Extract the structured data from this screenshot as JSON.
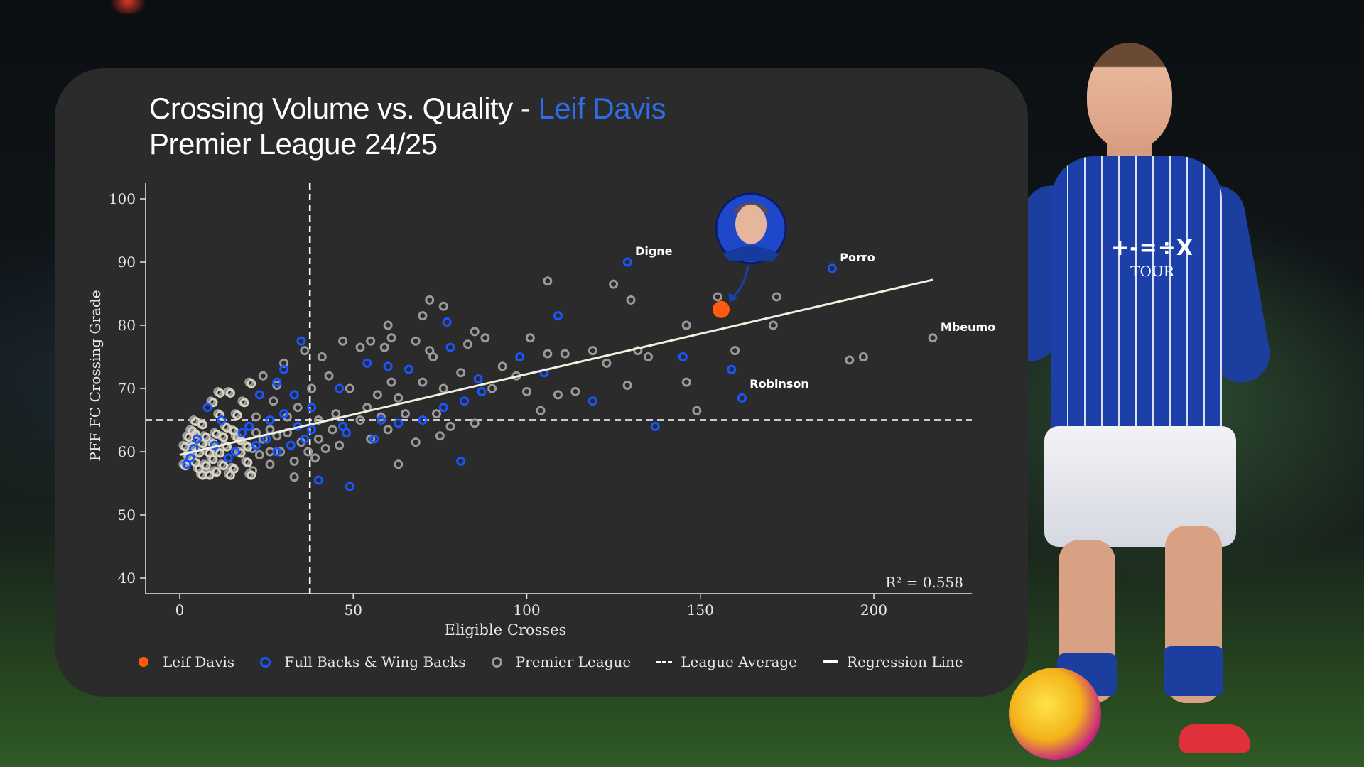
{
  "title": {
    "line1_prefix": "Crossing Volume vs. Quality - ",
    "line1_accent": "Leif Davis",
    "line2": "Premier League 24/25"
  },
  "player_shirt": {
    "sponsor": "+-=÷X",
    "sub": "TOUR"
  },
  "colors": {
    "card_bg": "#2b2b2b",
    "highlight": "#ff5a10",
    "fullbacks": "#1a56ff",
    "league": "#9a9a9a",
    "accent_title": "#2f6de6"
  },
  "chart_data": {
    "type": "scatter",
    "xlabel": "Eligible Crosses",
    "ylabel": "PFF FC Crossing Grade",
    "xlim": [
      -10,
      228
    ],
    "ylim": [
      38,
      102
    ],
    "xticks": [
      0,
      50,
      100,
      150,
      200
    ],
    "yticks": [
      40,
      50,
      60,
      70,
      80,
      90,
      100
    ],
    "league_average": {
      "x": 37.5,
      "y": 65
    },
    "regression": {
      "x0": 0,
      "y0": 59.5,
      "x1": 217,
      "y1": 87.2
    },
    "r_squared_label": "R² = 0.558",
    "series": [
      {
        "name": "Leif Davis",
        "style": "highlight",
        "points": [
          [
            156,
            82.5
          ]
        ]
      },
      {
        "name": "Full Backs & Wing Backs",
        "style": "ring-blue",
        "points": [
          [
            129,
            90
          ],
          [
            188,
            89
          ],
          [
            159,
            73
          ],
          [
            162,
            68.5
          ],
          [
            145,
            75
          ],
          [
            137,
            64
          ],
          [
            109,
            81.5
          ],
          [
            77,
            80.5
          ],
          [
            78,
            76.5
          ],
          [
            66,
            73
          ],
          [
            60,
            73.5
          ],
          [
            54,
            74
          ],
          [
            35,
            77.5
          ],
          [
            30,
            73
          ],
          [
            28,
            71
          ],
          [
            23,
            69
          ],
          [
            33,
            69
          ],
          [
            38,
            67
          ],
          [
            46,
            70
          ],
          [
            58,
            65
          ],
          [
            63,
            64.5
          ],
          [
            70,
            65
          ],
          [
            76,
            67
          ],
          [
            82,
            68
          ],
          [
            86,
            71.5
          ],
          [
            87,
            69.5
          ],
          [
            98,
            75
          ],
          [
            105,
            72.5
          ],
          [
            119,
            68
          ],
          [
            56,
            62
          ],
          [
            47,
            64
          ],
          [
            48,
            63
          ],
          [
            40,
            55.5
          ],
          [
            49,
            54.5
          ],
          [
            81,
            58.5
          ],
          [
            8,
            67
          ],
          [
            12,
            65
          ],
          [
            16,
            60
          ],
          [
            20,
            64
          ],
          [
            25,
            62
          ],
          [
            5,
            62
          ],
          [
            3,
            59
          ],
          [
            2,
            58
          ],
          [
            14,
            59
          ],
          [
            28,
            60
          ],
          [
            32,
            61
          ],
          [
            36,
            62
          ],
          [
            38,
            63.5
          ],
          [
            18,
            63
          ],
          [
            22,
            61
          ],
          [
            26,
            65
          ],
          [
            10,
            61
          ],
          [
            4,
            60.5
          ],
          [
            30,
            66
          ],
          [
            34,
            64
          ]
        ]
      },
      {
        "name": "Premier League",
        "style": "ring-grey",
        "points": [
          [
            106,
            87
          ],
          [
            125,
            86.5
          ],
          [
            130,
            84
          ],
          [
            155,
            84.5
          ],
          [
            172,
            84.5
          ],
          [
            171,
            80
          ],
          [
            146,
            80
          ],
          [
            160,
            76
          ],
          [
            132,
            76
          ],
          [
            135,
            75
          ],
          [
            146,
            71
          ],
          [
            129,
            70.5
          ],
          [
            149,
            66.5
          ],
          [
            193,
            74.5
          ],
          [
            197,
            75
          ],
          [
            217,
            78
          ],
          [
            72,
            84
          ],
          [
            76,
            83
          ],
          [
            70,
            81.5
          ],
          [
            60,
            80
          ],
          [
            55,
            77.5
          ],
          [
            47,
            77.5
          ],
          [
            52,
            76.5
          ],
          [
            59,
            76.5
          ],
          [
            61,
            78
          ],
          [
            68,
            77.5
          ],
          [
            72,
            76
          ],
          [
            73,
            75
          ],
          [
            83,
            77
          ],
          [
            85,
            79
          ],
          [
            88,
            78
          ],
          [
            93,
            73.5
          ],
          [
            101,
            78
          ],
          [
            106,
            75.5
          ],
          [
            111,
            75.5
          ],
          [
            119,
            76
          ],
          [
            123,
            74
          ],
          [
            97,
            72
          ],
          [
            100,
            69.5
          ],
          [
            104,
            66.5
          ],
          [
            109,
            69
          ],
          [
            114,
            69.5
          ],
          [
            90,
            70
          ],
          [
            81,
            72.5
          ],
          [
            76,
            70
          ],
          [
            70,
            71
          ],
          [
            61,
            71
          ],
          [
            63,
            68.5
          ],
          [
            57,
            69
          ],
          [
            54,
            67
          ],
          [
            49,
            70
          ],
          [
            43,
            72
          ],
          [
            41,
            75
          ],
          [
            36,
            76
          ],
          [
            38,
            70
          ],
          [
            30,
            74
          ],
          [
            28,
            70.5
          ],
          [
            24,
            72
          ],
          [
            20,
            71
          ],
          [
            18,
            68
          ],
          [
            14,
            69.5
          ],
          [
            11,
            69.5
          ],
          [
            9,
            68
          ],
          [
            16,
            66
          ],
          [
            22,
            65.5
          ],
          [
            27,
            68
          ],
          [
            31,
            65.5
          ],
          [
            34,
            67
          ],
          [
            40,
            65
          ],
          [
            45,
            66
          ],
          [
            52,
            65
          ],
          [
            58,
            65.5
          ],
          [
            65,
            66
          ],
          [
            74,
            66
          ],
          [
            78,
            64
          ],
          [
            85,
            64.5
          ],
          [
            75,
            62.5
          ],
          [
            68,
            61.5
          ],
          [
            60,
            63.5
          ],
          [
            55,
            62
          ],
          [
            44,
            63.5
          ],
          [
            40,
            62
          ],
          [
            37,
            60
          ],
          [
            33,
            58.5
          ],
          [
            29,
            60
          ],
          [
            26,
            58
          ],
          [
            24,
            62
          ],
          [
            21,
            60.5
          ],
          [
            19,
            58.5
          ],
          [
            17,
            62
          ],
          [
            15,
            63.5
          ],
          [
            13,
            61
          ],
          [
            12,
            58
          ],
          [
            11,
            60
          ],
          [
            10,
            63
          ],
          [
            9,
            61.5
          ],
          [
            8,
            60
          ],
          [
            7,
            58
          ],
          [
            6,
            64.5
          ],
          [
            5,
            57.5
          ],
          [
            4,
            63
          ],
          [
            3,
            61
          ],
          [
            2,
            59.5
          ],
          [
            1,
            58
          ],
          [
            1,
            61
          ],
          [
            2,
            62.5
          ],
          [
            3,
            63.5
          ],
          [
            4,
            58.5
          ],
          [
            5,
            60
          ],
          [
            6,
            61.5
          ],
          [
            7,
            62.5
          ],
          [
            8,
            56.5
          ],
          [
            9,
            59
          ],
          [
            10,
            57
          ],
          [
            13,
            64
          ],
          [
            15,
            57.5
          ],
          [
            17,
            60
          ],
          [
            19,
            61
          ],
          [
            21,
            57
          ],
          [
            23,
            59.5
          ],
          [
            26,
            63.5
          ],
          [
            28,
            62.5
          ],
          [
            33,
            56
          ],
          [
            39,
            59
          ],
          [
            42,
            60.5
          ],
          [
            35,
            61.5
          ],
          [
            31,
            63
          ],
          [
            16,
            62.5
          ],
          [
            14,
            56.5
          ],
          [
            12,
            62.5
          ],
          [
            6,
            56.5
          ],
          [
            4,
            65
          ],
          [
            11,
            66
          ],
          [
            26,
            60
          ],
          [
            22,
            63
          ],
          [
            20,
            56.5
          ],
          [
            46,
            61
          ],
          [
            63,
            58
          ]
        ]
      }
    ],
    "annotations": [
      {
        "label": "Digne",
        "x": 130,
        "y": 90
      },
      {
        "label": "Porro",
        "x": 189,
        "y": 89
      },
      {
        "label": "Mbeumo",
        "x": 218,
        "y": 78
      },
      {
        "label": "Robinson",
        "x": 163,
        "y": 69
      }
    ]
  },
  "legend": [
    {
      "label": "Leif Davis",
      "marker": "dot"
    },
    {
      "label": "Full Backs & Wing Backs",
      "marker": "ring-blue"
    },
    {
      "label": "Premier League",
      "marker": "ring-grey"
    },
    {
      "label": "League Average",
      "marker": "dash"
    },
    {
      "label": "Regression Line",
      "marker": "line"
    }
  ]
}
